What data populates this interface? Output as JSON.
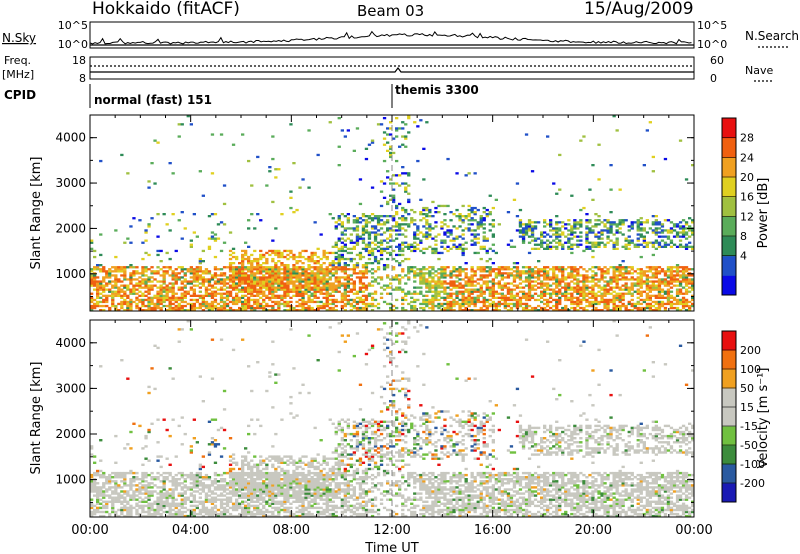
{
  "header": {
    "radar": "Hokkaido (fitACF)",
    "beam": "Beam 03",
    "date": "15/Aug/2009"
  },
  "strip": {
    "nsky_label": "N.Sky",
    "nsky_ticks": [
      "10^5",
      "10^0"
    ],
    "nsearch_label": "N.Search",
    "freq_label_1": "Freq.",
    "freq_label_2": "[MHz]",
    "freq_ticks": [
      "18",
      "8"
    ],
    "nave_label": "Nave",
    "nave_ticks": [
      "60",
      "0"
    ],
    "cpid_label": "CPID",
    "cpid_1": "normal (fast) 151",
    "cpid_2": "themis 3300"
  },
  "colors": {
    "power": [
      "#0a0ae6",
      "#2050c8",
      "#2e8b57",
      "#5aac5a",
      "#a0c040",
      "#e0d020",
      "#f0a020",
      "#f06010",
      "#e81010"
    ],
    "velocity": [
      "#1a1ab4",
      "#2a5aa0",
      "#3c8c3c",
      "#70c040",
      "#c8c8c0",
      "#c8c8c0",
      "#f0a020",
      "#f07010",
      "#e81010"
    ]
  },
  "chart_data": [
    {
      "type": "heatmap",
      "quantity": "Power",
      "ylabel": "Slant Range [km]",
      "xlabel": "Time UT",
      "x_ticks": [
        "00:00",
        "04:00",
        "08:00",
        "12:00",
        "16:00",
        "20:00",
        "00:00"
      ],
      "x_range_hours": [
        0,
        24
      ],
      "y_ticks": [
        1000,
        2000,
        3000,
        4000
      ],
      "y_range": [
        180,
        4500
      ],
      "colorbar_label": "Power [dB]",
      "colorbar_ticks": [
        "28",
        "24",
        "20",
        "16",
        "12",
        "8",
        "4"
      ],
      "colorbar_range": [
        0,
        32
      ]
    },
    {
      "type": "heatmap",
      "quantity": "Velocity",
      "ylabel": "Slant Range [km]",
      "xlabel": "Time UT",
      "x_ticks": [
        "00:00",
        "04:00",
        "08:00",
        "12:00",
        "16:00",
        "20:00",
        "00:00"
      ],
      "x_range_hours": [
        0,
        24
      ],
      "y_ticks": [
        1000,
        2000,
        3000,
        4000
      ],
      "y_range": [
        180,
        4500
      ],
      "colorbar_label": "Velocity [m s⁻¹]",
      "colorbar_ticks": [
        "200",
        "100",
        "50",
        "15",
        "-15",
        "-50",
        "-100",
        "-200"
      ]
    }
  ]
}
